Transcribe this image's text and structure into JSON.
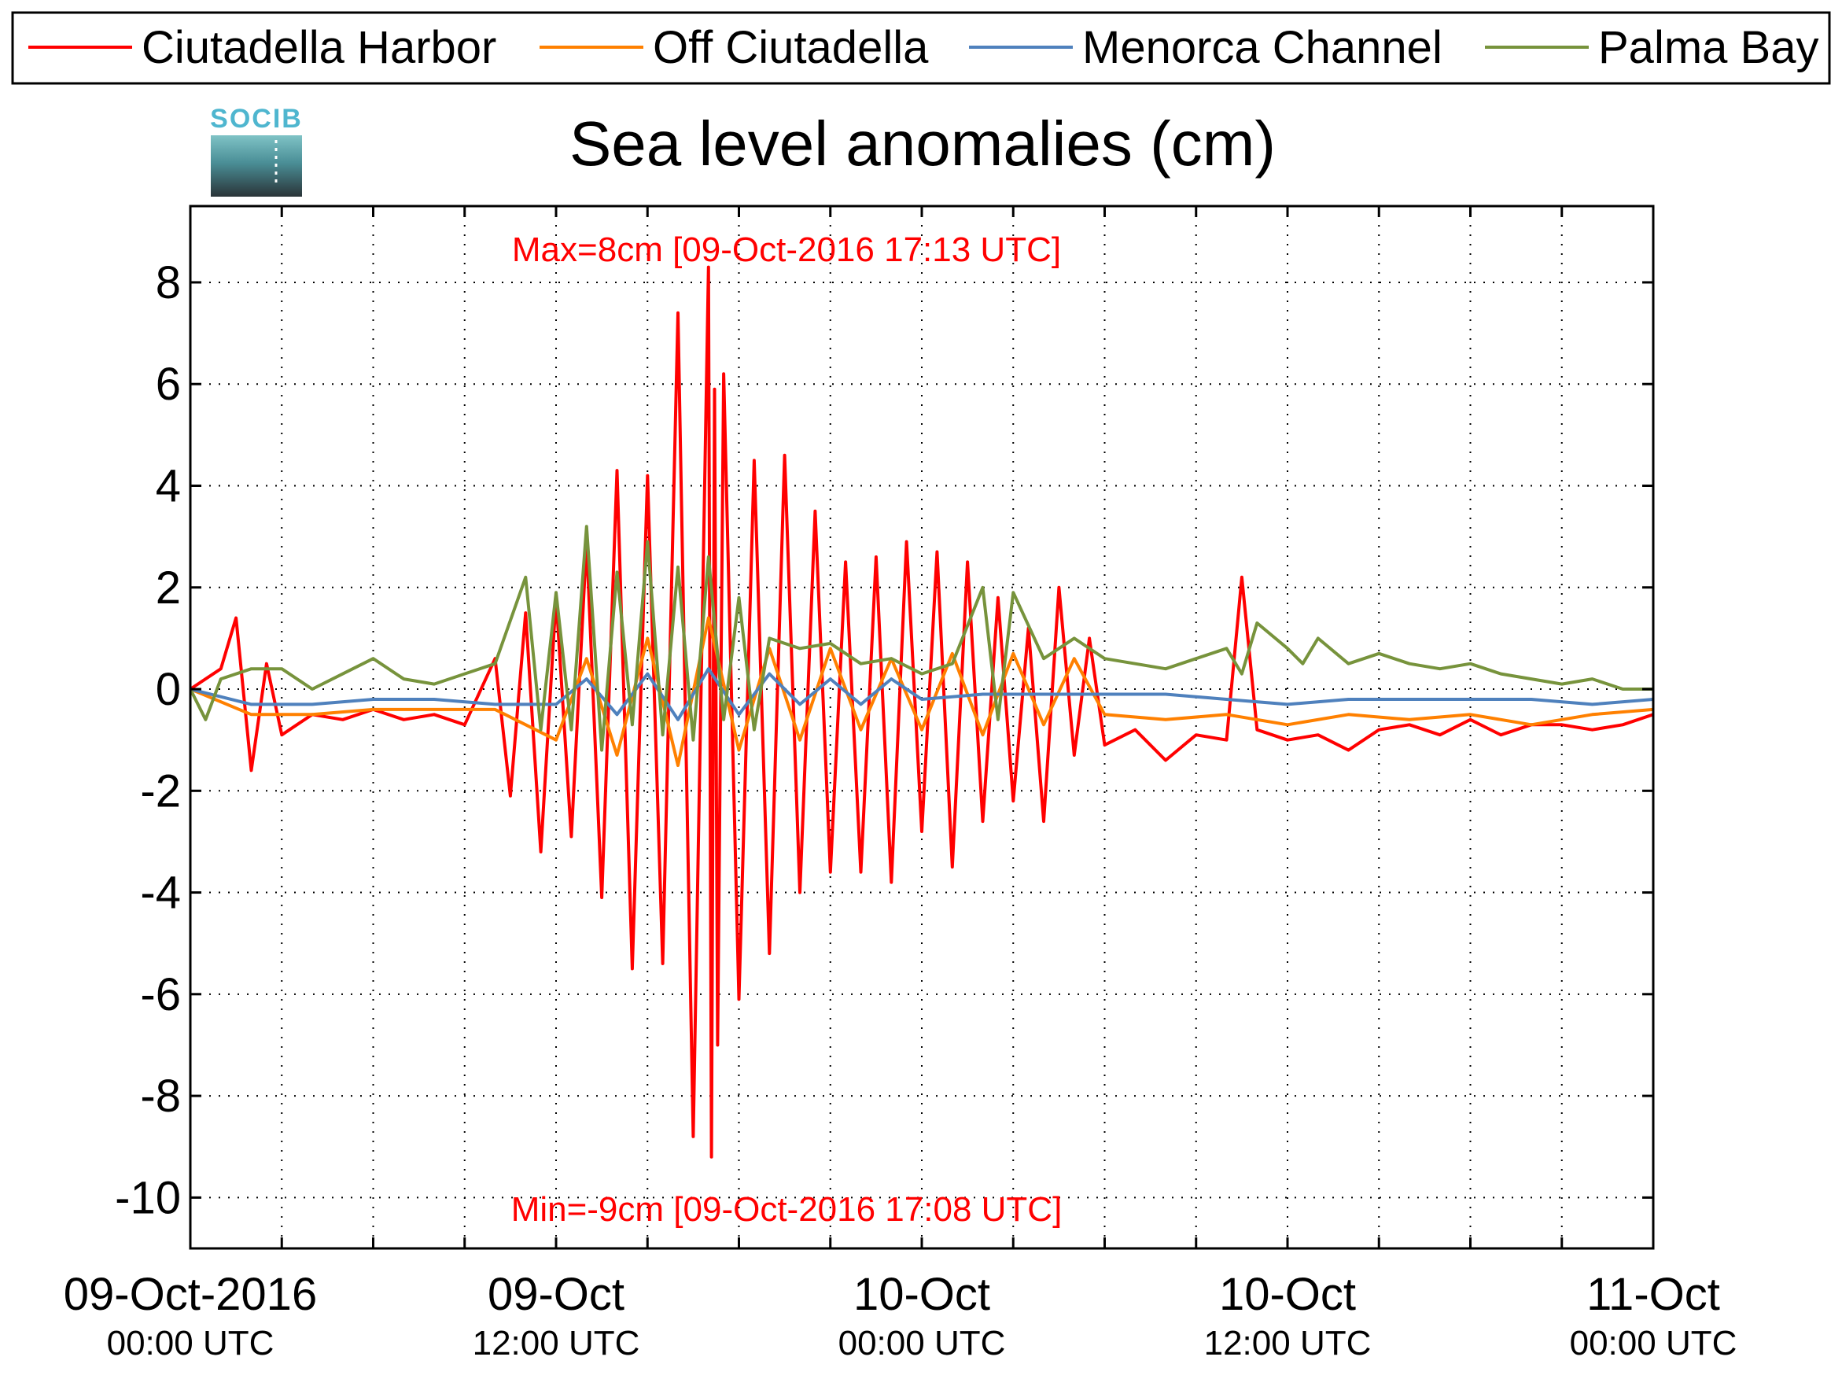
{
  "chart_data": {
    "type": "line",
    "title": "Sea level anomalies (cm)",
    "xlabel": "",
    "ylabel": "",
    "ylim": [
      -11,
      9.5
    ],
    "xlim": [
      "2016-10-09 00:00",
      "2016-10-11 00:00"
    ],
    "grid": true,
    "legend_placement": "top",
    "logo_text": "SOCIB",
    "yticks": [
      "-10",
      "-8",
      "-6",
      "-4",
      "-2",
      "0",
      "2",
      "4",
      "6",
      "8"
    ],
    "xticks": [
      {
        "main": "09-Oct-2016",
        "sub": "00:00 UTC"
      },
      {
        "main": "09-Oct",
        "sub": "12:00 UTC"
      },
      {
        "main": "10-Oct",
        "sub": "00:00 UTC"
      },
      {
        "main": "10-Oct",
        "sub": "12:00 UTC"
      },
      {
        "main": "11-Oct",
        "sub": "00:00 UTC"
      }
    ],
    "annotations": {
      "max_label": "Max=8cm [09-Oct-2016 17:13 UTC]",
      "min_label": "Min=-9cm [09-Oct-2016 17:08 UTC]"
    },
    "series": [
      {
        "name": "Ciutadella Harbor",
        "color": "#ff0000",
        "width": 4,
        "x_hours": [
          0,
          1,
          1.5,
          2,
          2.5,
          3,
          4,
          5,
          6,
          7,
          8,
          9,
          10,
          10.5,
          11,
          11.5,
          12,
          12.5,
          13,
          13.5,
          14,
          14.5,
          15,
          15.5,
          16,
          16.5,
          17,
          17.1,
          17.2,
          17.3,
          17.5,
          18,
          18.5,
          19,
          19.5,
          20,
          20.5,
          21,
          21.5,
          22,
          22.5,
          23,
          23.5,
          24,
          24.5,
          25,
          25.5,
          26,
          26.5,
          27,
          27.5,
          28,
          28.5,
          29,
          29.5,
          30,
          31,
          32,
          33,
          34,
          34.5,
          35,
          36,
          37,
          38,
          39,
          40,
          41,
          42,
          43,
          44,
          45,
          46,
          47,
          48
        ],
        "y": [
          0,
          0.4,
          1.4,
          -1.6,
          0.5,
          -0.9,
          -0.5,
          -0.6,
          -0.4,
          -0.6,
          -0.5,
          -0.7,
          0.6,
          -2.1,
          1.5,
          -3.2,
          1.8,
          -2.9,
          2.9,
          -4.1,
          4.3,
          -5.5,
          4.2,
          -5.4,
          7.4,
          -8.8,
          8.3,
          -9.2,
          5.9,
          -7.0,
          6.2,
          -6.1,
          4.5,
          -5.2,
          4.6,
          -4.0,
          3.5,
          -3.6,
          2.5,
          -3.6,
          2.6,
          -3.8,
          2.9,
          -2.8,
          2.7,
          -3.5,
          2.5,
          -2.6,
          1.8,
          -2.2,
          1.2,
          -2.6,
          2.0,
          -1.3,
          1.0,
          -1.1,
          -0.8,
          -1.4,
          -0.9,
          -1.0,
          2.2,
          -0.8,
          -1.0,
          -0.9,
          -1.2,
          -0.8,
          -0.7,
          -0.9,
          -0.6,
          -0.9,
          -0.7,
          -0.7,
          -0.8,
          -0.7,
          -0.5
        ]
      },
      {
        "name": "Off Ciutadella",
        "color": "#ff8000",
        "width": 4,
        "x_hours": [
          0,
          2,
          4,
          6,
          8,
          10,
          12,
          13,
          14,
          15,
          16,
          17,
          18,
          19,
          20,
          21,
          22,
          23,
          24,
          25,
          26,
          27,
          28,
          29,
          30,
          32,
          34,
          36,
          38,
          40,
          42,
          44,
          46,
          48
        ],
        "y": [
          0,
          -0.5,
          -0.5,
          -0.4,
          -0.4,
          -0.4,
          -1.0,
          0.6,
          -1.3,
          1.0,
          -1.5,
          1.4,
          -1.2,
          0.8,
          -1.0,
          0.8,
          -0.8,
          0.6,
          -0.8,
          0.7,
          -0.9,
          0.7,
          -0.7,
          0.6,
          -0.5,
          -0.6,
          -0.5,
          -0.7,
          -0.5,
          -0.6,
          -0.5,
          -0.7,
          -0.5,
          -0.4
        ]
      },
      {
        "name": "Menorca Channel",
        "color": "#4f81bd",
        "width": 4,
        "x_hours": [
          0,
          2,
          4,
          6,
          8,
          10,
          12,
          13,
          14,
          15,
          16,
          17,
          18,
          19,
          20,
          21,
          22,
          23,
          24,
          26,
          28,
          30,
          32,
          34,
          36,
          38,
          40,
          42,
          44,
          46,
          48
        ],
        "y": [
          0,
          -0.3,
          -0.3,
          -0.2,
          -0.2,
          -0.3,
          -0.3,
          0.2,
          -0.5,
          0.3,
          -0.6,
          0.4,
          -0.5,
          0.3,
          -0.3,
          0.2,
          -0.3,
          0.2,
          -0.2,
          -0.1,
          -0.1,
          -0.1,
          -0.1,
          -0.2,
          -0.3,
          -0.2,
          -0.2,
          -0.2,
          -0.2,
          -0.3,
          -0.2
        ]
      },
      {
        "name": "Palma Bay",
        "color": "#77933c",
        "width": 4,
        "x_hours": [
          0,
          0.5,
          1,
          2,
          3,
          4,
          5,
          6,
          7,
          8,
          9,
          10,
          11,
          11.5,
          12,
          12.5,
          13,
          13.5,
          14,
          14.5,
          15,
          15.5,
          16,
          16.5,
          17,
          17.5,
          18,
          18.5,
          19,
          20,
          21,
          22,
          23,
          24,
          25,
          26,
          26.5,
          27,
          28,
          29,
          30,
          31,
          32,
          33,
          34,
          34.5,
          35,
          36,
          36.5,
          37,
          38,
          39,
          40,
          41,
          42,
          43,
          44,
          45,
          46,
          47,
          48
        ],
        "y": [
          0,
          -0.6,
          0.2,
          0.4,
          0.4,
          0,
          0.3,
          0.6,
          0.2,
          0.1,
          0.3,
          0.5,
          2.2,
          -0.8,
          1.9,
          -0.8,
          3.2,
          -1.2,
          2.3,
          -0.7,
          2.9,
          -0.9,
          2.4,
          -1.0,
          2.6,
          -0.6,
          1.8,
          -0.8,
          1.0,
          0.8,
          0.9,
          0.5,
          0.6,
          0.3,
          0.5,
          2.0,
          -0.6,
          1.9,
          0.6,
          1.0,
          0.6,
          0.5,
          0.4,
          0.6,
          0.8,
          0.3,
          1.3,
          0.8,
          0.5,
          1.0,
          0.5,
          0.7,
          0.5,
          0.4,
          0.5,
          0.3,
          0.2,
          0.1,
          0.2,
          0,
          0
        ]
      }
    ]
  }
}
